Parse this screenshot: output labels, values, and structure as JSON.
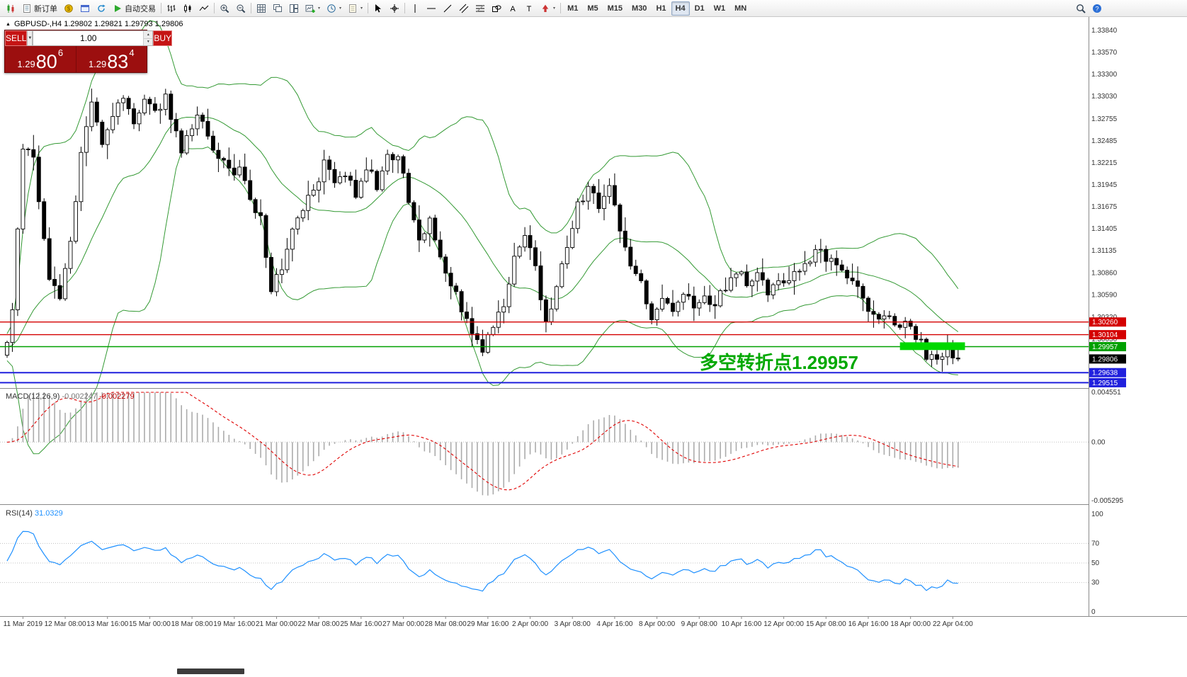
{
  "toolbar": {
    "groups": [
      {
        "items": [
          {
            "name": "app-chart-button",
            "icon": "candles"
          },
          {
            "name": "new-order-button",
            "icon": "neworder",
            "label": "新订单"
          },
          {
            "name": "market-watch-button",
            "icon": "coin"
          },
          {
            "name": "data-window-button",
            "icon": "datawin"
          },
          {
            "name": "refresh-button",
            "icon": "refresh"
          },
          {
            "name": "autotrading-button",
            "icon": "play",
            "label": "自动交易"
          }
        ]
      },
      {
        "items": [
          {
            "name": "bars-chart-button",
            "icon": "bars"
          },
          {
            "name": "candlestick-chart-button",
            "icon": "candle"
          },
          {
            "name": "line-chart-button",
            "icon": "linechart"
          }
        ]
      },
      {
        "items": [
          {
            "name": "zoom-in-button",
            "icon": "zoomin"
          },
          {
            "name": "zoom-out-button",
            "icon": "zoomout"
          }
        ]
      },
      {
        "items": [
          {
            "name": "grid-button",
            "icon": "grid"
          },
          {
            "name": "cascade-windows-button",
            "icon": "cascade"
          },
          {
            "name": "tile-windows-button",
            "icon": "tile"
          },
          {
            "name": "new-chart-button",
            "icon": "newchart",
            "caret": true
          },
          {
            "name": "periodicity-button",
            "icon": "clock",
            "caret": true
          },
          {
            "name": "templates-button",
            "icon": "template",
            "caret": true
          }
        ]
      },
      {
        "items": [
          {
            "name": "cursor-button",
            "icon": "cursor"
          },
          {
            "name": "crosshair-button",
            "icon": "crosshair"
          }
        ]
      },
      {
        "items": [
          {
            "name": "vertical-line-button",
            "icon": "vline"
          },
          {
            "name": "horizontal-line-button",
            "icon": "hline"
          },
          {
            "name": "trendline-button",
            "icon": "tline"
          },
          {
            "name": "equidistant-channel-button",
            "icon": "channel"
          },
          {
            "name": "fibonacci-button",
            "icon": "fibo"
          },
          {
            "name": "shapes-button",
            "icon": "shapes"
          },
          {
            "name": "text-button",
            "icon": "textA"
          },
          {
            "name": "text-label-button",
            "icon": "textT"
          },
          {
            "name": "arrows-button",
            "icon": "arrowstamp",
            "caret": true
          }
        ]
      },
      {
        "tf": true,
        "items": [
          {
            "name": "timeframe-m1-button",
            "label": "M1"
          },
          {
            "name": "timeframe-m5-button",
            "label": "M5"
          },
          {
            "name": "timeframe-m15-button",
            "label": "M15"
          },
          {
            "name": "timeframe-m30-button",
            "label": "M30"
          },
          {
            "name": "timeframe-h1-button",
            "label": "H1"
          },
          {
            "name": "timeframe-h4-button",
            "label": "H4",
            "active": true
          },
          {
            "name": "timeframe-d1-button",
            "label": "D1"
          },
          {
            "name": "timeframe-w1-button",
            "label": "W1"
          },
          {
            "name": "timeframe-mn-button",
            "label": "MN"
          }
        ]
      },
      {
        "right": true,
        "items": [
          {
            "name": "search-button",
            "icon": "magnifier"
          },
          {
            "name": "help-button",
            "icon": "help"
          }
        ]
      }
    ]
  },
  "chart": {
    "symbol_line": "GBPUSD-,H4 1.29802 1.29821 1.29793 1.29806"
  },
  "trade_panel": {
    "sell_label": "SELL",
    "buy_label": "BUY",
    "volume": "1.00",
    "sell_price_prefix": "1.29",
    "sell_price_big": "80",
    "sell_price_sup": "6",
    "buy_price_prefix": "1.29",
    "buy_price_big": "83",
    "buy_price_sup": "4"
  },
  "annotation": {
    "text": "多空转折点1.29957",
    "color": "#00a800"
  },
  "levels": [
    {
      "price": 1.3026,
      "label": "1.30260",
      "color": "#d40000",
      "width": 1.4
    },
    {
      "price": 1.30104,
      "label": "1.30104",
      "color": "#d40000",
      "width": 1.4
    },
    {
      "price": 1.29957,
      "label": "1.29957",
      "color": "#00a000",
      "width": 1.4
    },
    {
      "price": 1.29638,
      "label": "1.29638",
      "color": "#2020dd",
      "width": 2
    },
    {
      "price": 1.29515,
      "label": "1.29515",
      "color": "#2020dd",
      "width": 2
    }
  ],
  "current_price": {
    "price": 1.29806,
    "label": "1.29806",
    "color": "#000000"
  },
  "highlight_rect": {
    "from_bar": 169,
    "to_bar": 181.3,
    "price_top": 1.3001,
    "price_bottom": 1.29915,
    "color": "#00d800"
  },
  "price_axis": {
    "ticks": [
      "1.33840",
      "1.33570",
      "1.33300",
      "1.33030",
      "1.32755",
      "1.32485",
      "1.32215",
      "1.31945",
      "1.31675",
      "1.31405",
      "1.31135",
      "1.30860",
      "1.30590",
      "1.30320",
      "1.30050",
      "1.29780",
      "1.29510"
    ]
  },
  "time_axis": {
    "labels": [
      "11 Mar 2019",
      "12 Mar 08:00",
      "13 Mar 16:00",
      "15 Mar 00:00",
      "18 Mar 08:00",
      "19 Mar 16:00",
      "21 Mar 00:00",
      "22 Mar 08:00",
      "25 Mar 16:00",
      "27 Mar 00:00",
      "28 Mar 08:00",
      "29 Mar 16:00",
      "2 Apr 00:00",
      "3 Apr 08:00",
      "4 Apr 16:00",
      "8 Apr 00:00",
      "9 Apr 08:00",
      "10 Apr 16:00",
      "12 Apr 00:00",
      "15 Apr 08:00",
      "16 Apr 16:00",
      "18 Apr 00:00",
      "22 Apr 04:00"
    ],
    "first_bar_index": 3,
    "bars_per_label": 8
  },
  "macd": {
    "name": "MACD(12,26,9)",
    "value_main": "-0.002247",
    "value_signal": "-0.002279",
    "axis": [
      "0.004551",
      "0.00",
      "-0.005295"
    ]
  },
  "rsi": {
    "name": "RSI(14)",
    "value": "31.0329",
    "axis": [
      "100",
      "70",
      "50",
      "30",
      "0"
    ],
    "levels": [
      70,
      50,
      30
    ]
  },
  "palette": {
    "bull_body": "#ffffff",
    "bear_body": "#000000",
    "candle_outline": "#000000",
    "bands": "#339933",
    "macd_hist": "#ababab",
    "macd_signal": "#e00000",
    "rsi_line": "#1e90ff",
    "axis_text": "#333333",
    "separator": "#8a8a8a",
    "guide_dotted": "#c0c0c0"
  },
  "chart_data": {
    "type": "candlestick",
    "symbol": "GBPUSD-",
    "timeframe": "H4",
    "open": "1.29802",
    "high": "1.29821",
    "low": "1.29793",
    "close": "1.29806",
    "bar_count": 181,
    "pre_bars": 30,
    "noise_seed": 97,
    "bb_period": 20,
    "bb_dev": 2,
    "macd_params": [
      12,
      26,
      9
    ],
    "rsi_period": 14,
    "anchors": [
      [
        0,
        1.2995
      ],
      [
        1,
        1.304
      ],
      [
        3,
        1.3245
      ],
      [
        5,
        1.3235
      ],
      [
        6,
        1.318
      ],
      [
        8,
        1.3075
      ],
      [
        10,
        1.306
      ],
      [
        12,
        1.313
      ],
      [
        14,
        1.323
      ],
      [
        16,
        1.33
      ],
      [
        18,
        1.3245
      ],
      [
        20,
        1.328
      ],
      [
        22,
        1.33
      ],
      [
        24,
        1.3265
      ],
      [
        26,
        1.3295
      ],
      [
        28,
        1.328
      ],
      [
        30,
        1.33
      ],
      [
        33,
        1.324
      ],
      [
        36,
        1.3285
      ],
      [
        38,
        1.3255
      ],
      [
        40,
        1.323
      ],
      [
        42,
        1.321
      ],
      [
        44,
        1.3215
      ],
      [
        46,
        1.318
      ],
      [
        48,
        1.315
      ],
      [
        50,
        1.307
      ],
      [
        52,
        1.309
      ],
      [
        54,
        1.314
      ],
      [
        56,
        1.3165
      ],
      [
        58,
        1.3185
      ],
      [
        60,
        1.322
      ],
      [
        62,
        1.3195
      ],
      [
        64,
        1.3205
      ],
      [
        66,
        1.3185
      ],
      [
        68,
        1.3215
      ],
      [
        70,
        1.3195
      ],
      [
        72,
        1.3225
      ],
      [
        74,
        1.3235
      ],
      [
        76,
        1.317
      ],
      [
        78,
        1.3125
      ],
      [
        80,
        1.315
      ],
      [
        82,
        1.3105
      ],
      [
        84,
        1.3075
      ],
      [
        86,
        1.3045
      ],
      [
        88,
        1.301
      ],
      [
        90,
        1.2995
      ],
      [
        92,
        1.3025
      ],
      [
        94,
        1.3045
      ],
      [
        96,
        1.3105
      ],
      [
        98,
        1.3135
      ],
      [
        100,
        1.309
      ],
      [
        102,
        1.3028
      ],
      [
        104,
        1.3065
      ],
      [
        106,
        1.312
      ],
      [
        108,
        1.317
      ],
      [
        110,
        1.3192
      ],
      [
        112,
        1.3172
      ],
      [
        114,
        1.3196
      ],
      [
        116,
        1.314
      ],
      [
        118,
        1.31
      ],
      [
        120,
        1.307
      ],
      [
        122,
        1.3032
      ],
      [
        124,
        1.3052
      ],
      [
        126,
        1.3042
      ],
      [
        128,
        1.306
      ],
      [
        130,
        1.305
      ],
      [
        132,
        1.3062
      ],
      [
        134,
        1.3046
      ],
      [
        136,
        1.3072
      ],
      [
        138,
        1.3088
      ],
      [
        140,
        1.3076
      ],
      [
        142,
        1.3086
      ],
      [
        144,
        1.3066
      ],
      [
        146,
        1.308
      ],
      [
        148,
        1.3076
      ],
      [
        150,
        1.3092
      ],
      [
        152,
        1.3106
      ],
      [
        154,
        1.311
      ],
      [
        156,
        1.31
      ],
      [
        158,
        1.3086
      ],
      [
        160,
        1.3076
      ],
      [
        162,
        1.3052
      ],
      [
        164,
        1.3036
      ],
      [
        166,
        1.303
      ],
      [
        168,
        1.3028
      ],
      [
        170,
        1.3022
      ],
      [
        172,
        1.301
      ],
      [
        174,
        1.2986
      ],
      [
        176,
        1.2976
      ],
      [
        178,
        1.2986
      ],
      [
        180,
        1.29806
      ]
    ]
  }
}
